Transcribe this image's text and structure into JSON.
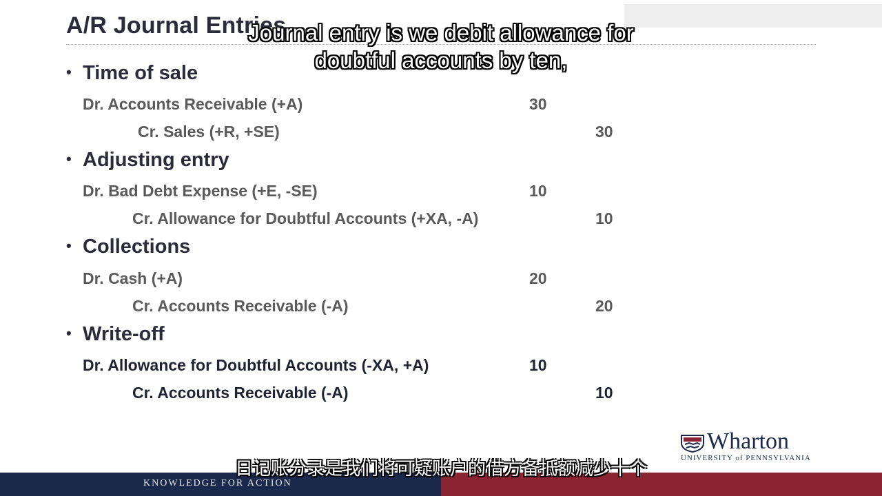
{
  "slide": {
    "title": "A/R Journal Entries",
    "sections": [
      {
        "heading": "Time of sale",
        "debit": {
          "label": "Dr. Accounts Receivable (+A)",
          "amount": "30"
        },
        "credit": {
          "label": "Cr. Sales (+R, +SE)",
          "amount": "30"
        }
      },
      {
        "heading": "Adjusting entry",
        "debit": {
          "label": "Dr. Bad Debt Expense (+E, -SE)",
          "amount": "10"
        },
        "credit": {
          "label": "Cr. Allowance for Doubtful Accounts (+XA, -A)",
          "amount": "10"
        }
      },
      {
        "heading": "Collections",
        "debit": {
          "label": "Dr. Cash (+A)",
          "amount": "20"
        },
        "credit": {
          "label": "Cr. Accounts Receivable (-A)",
          "amount": "20"
        }
      },
      {
        "heading": "Write-off",
        "debit": {
          "label": "Dr. Allowance for Doubtful Accounts (-XA, +A)",
          "amount": "10"
        },
        "credit": {
          "label": "Cr. Accounts Receivable (-A)",
          "amount": "10"
        }
      }
    ]
  },
  "subtitles": {
    "en_line1": "Journal entry is we debit allowance for",
    "en_line2": "doubtful accounts by ten,",
    "cn": "日记账分录是我们将可疑账户的借方备抵额减少十个"
  },
  "branding": {
    "logo_word": "Wharton",
    "logo_university": "UNIVERSITY of PENNSYLVANIA",
    "tagline": "KNOWLEDGE FOR ACTION"
  },
  "colors": {
    "navy": "#1b2a4c",
    "maroon": "#8a2432",
    "heading_text": "#2b2b3a",
    "entry_text": "#5a5a5a"
  }
}
